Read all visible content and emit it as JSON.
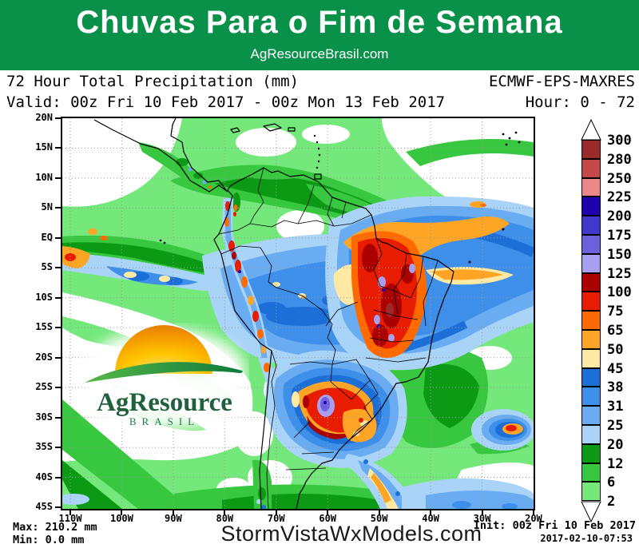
{
  "header": {
    "title": "Chuvas Para o Fim de Semana",
    "subtitle": "AgResourceBrasil.com",
    "bg_color": "#0A9149"
  },
  "info": {
    "product": "72 Hour Total Precipitation (mm)",
    "model": "ECMWF-EPS-MAXRES",
    "valid": "Valid: 00z Fri 10 Feb 2017 - 00z Mon 13 Feb 2017",
    "hour": "Hour: 0 - 72"
  },
  "map": {
    "lat_labels": [
      "20N",
      "15N",
      "10N",
      "5N",
      "EQ",
      "5S",
      "10S",
      "15S",
      "20S",
      "25S",
      "30S",
      "35S",
      "40S",
      "45S"
    ],
    "lon_labels": [
      "110W",
      "100W",
      "90W",
      "80W",
      "70W",
      "60W",
      "50W",
      "40W",
      "30W",
      "20W"
    ]
  },
  "colorbar": {
    "unit": "mm",
    "labels": [
      "300",
      "280",
      "250",
      "225",
      "200",
      "175",
      "150",
      "125",
      "100",
      "75",
      "65",
      "50",
      "45",
      "38",
      "31",
      "25",
      "20",
      "12",
      "6",
      "2"
    ],
    "colors": [
      "#9B2B2B",
      "#C64848",
      "#EC8888",
      "#1E00AD",
      "#4038CC",
      "#6C60DD",
      "#A89EF2",
      "#AA0000",
      "#E81C00",
      "#FF6A00",
      "#FFA526",
      "#FFE9A3",
      "#1D6FD8",
      "#3E8FE9",
      "#69ACF2",
      "#A9D3F7",
      "#0C9A14",
      "#37C83F",
      "#74E87B"
    ]
  },
  "logo": {
    "line1": "AgResource",
    "line2": "BRASIL"
  },
  "footer": {
    "max": "Max: 210.2 mm",
    "min": "Min: 0.0 mm",
    "site": "StormVistaWxModels.com",
    "init": "Init: 00z Fri 10 Feb 2017",
    "timestamp": "2017-02-10-07:53"
  }
}
